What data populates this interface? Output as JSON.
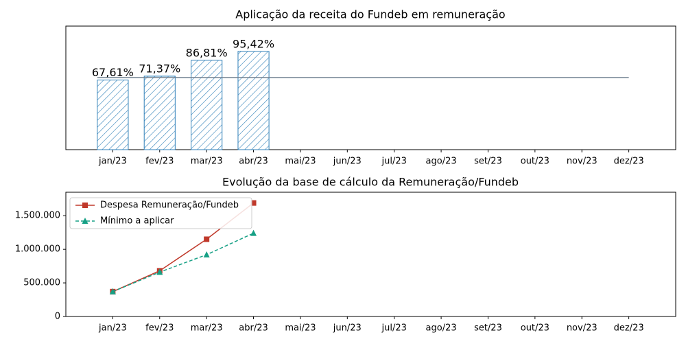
{
  "chart_data": [
    {
      "type": "bar",
      "title": "Aplicação da receita do Fundeb em remuneração",
      "categories": [
        "jan/23",
        "fev/23",
        "mar/23",
        "abr/23",
        "mai/23",
        "jun/23",
        "jul/23",
        "ago/23",
        "set/23",
        "out/23",
        "nov/23",
        "dez/23"
      ],
      "values": [
        67.61,
        71.37,
        86.81,
        95.42,
        null,
        null,
        null,
        null,
        null,
        null,
        null,
        null
      ],
      "value_labels": [
        "67,61%",
        "71,37%",
        "86,81%",
        "95,42%",
        null,
        null,
        null,
        null,
        null,
        null,
        null,
        null
      ],
      "color": "#2e7fb8",
      "hatch": true,
      "reference_line": 70,
      "reference_color": "#708090",
      "ylim": [
        0,
        120
      ]
    },
    {
      "type": "line",
      "title": "Evolução da base de cálculo da Remuneração/Fundeb",
      "categories": [
        "jan/23",
        "fev/23",
        "mar/23",
        "abr/23",
        "mai/23",
        "jun/23",
        "jul/23",
        "ago/23",
        "set/23",
        "out/23",
        "nov/23",
        "dez/23"
      ],
      "series": [
        {
          "name": "Despesa Remuneração/Fundeb",
          "color": "#c0392b",
          "marker": "square",
          "dashed": false,
          "values": [
            370000,
            680000,
            1150000,
            1690000,
            null,
            null,
            null,
            null,
            null,
            null,
            null,
            null
          ]
        },
        {
          "name": "Mínimo a aplicar",
          "color": "#16a085",
          "marker": "triangle",
          "dashed": true,
          "values": [
            370000,
            660000,
            920000,
            1240000,
            null,
            null,
            null,
            null,
            null,
            null,
            null,
            null
          ]
        }
      ],
      "ylim": [
        0,
        1850000
      ],
      "yticks": [
        0,
        {
          "value": 500000,
          "label": "500.000"
        },
        {
          "value": 1000000,
          "label": "1.000.000"
        },
        {
          "value": 1500000,
          "label": "1.500.000"
        }
      ],
      "legend": "upper left"
    }
  ]
}
